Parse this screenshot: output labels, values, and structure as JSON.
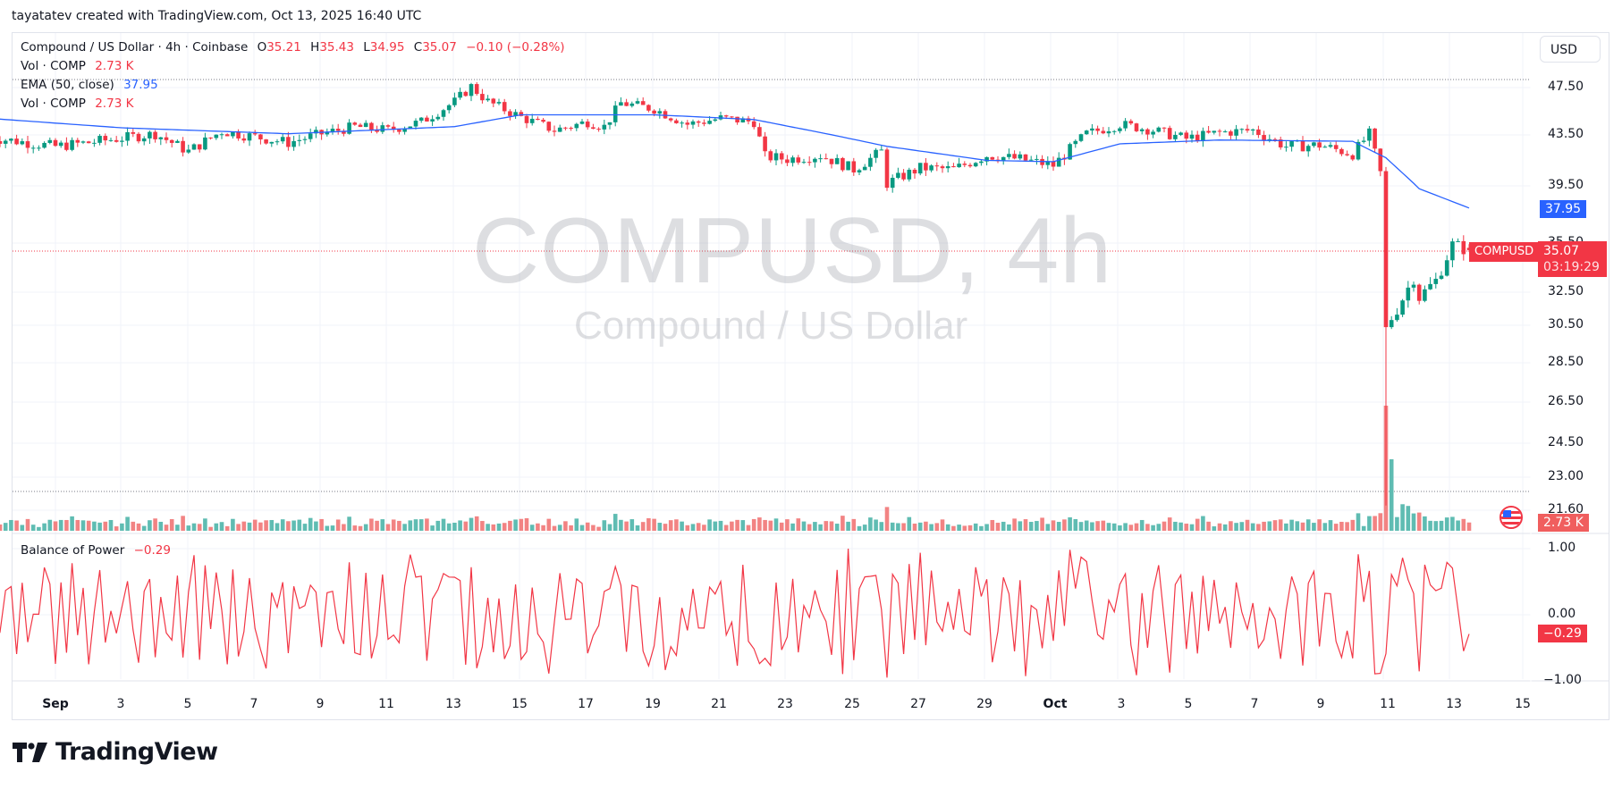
{
  "credit": "tayatatev created with TradingView.com, Oct 13, 2025 16:40 UTC",
  "legend": {
    "symbol_line": "Compound / US Dollar · 4h · Coinbase",
    "o_label": "O",
    "o_value": "35.21",
    "h_label": "H",
    "h_value": "35.43",
    "l_label": "L",
    "l_value": "34.95",
    "c_label": "C",
    "c_value": "35.07",
    "change": "−0.10 (−0.28%)",
    "vol_label": "Vol · COMP",
    "vol_value": "2.73 K",
    "ema_label": "EMA (50, close)",
    "ema_value": "37.95",
    "vol2_label": "Vol · COMP",
    "vol2_value": "2.73 K"
  },
  "currency": "USD",
  "watermark": {
    "title": "COMPUSD, 4h",
    "subtitle": "Compound / US Dollar"
  },
  "price_axis": {
    "ticks": [
      "47.50",
      "43.50",
      "39.50",
      "35.50",
      "32.50",
      "30.50",
      "28.50",
      "26.50",
      "24.50",
      "23.00",
      "21.60"
    ],
    "ema_tag": "37.95",
    "symbol_tag": "COMPUSD",
    "price_tag": "35.07",
    "countdown": "03:19:29",
    "volume_tag": "2.73 K"
  },
  "bop": {
    "label": "Balance of Power",
    "value": "−0.29",
    "ticks": [
      "1.00",
      "0.00",
      "−1.00"
    ],
    "tag": "−0.29"
  },
  "time_axis": [
    {
      "label": "Sep",
      "bold": true
    },
    {
      "label": "3"
    },
    {
      "label": "5"
    },
    {
      "label": "7"
    },
    {
      "label": "9"
    },
    {
      "label": "11"
    },
    {
      "label": "13"
    },
    {
      "label": "15"
    },
    {
      "label": "17"
    },
    {
      "label": "19"
    },
    {
      "label": "21"
    },
    {
      "label": "23"
    },
    {
      "label": "25"
    },
    {
      "label": "27"
    },
    {
      "label": "29"
    },
    {
      "label": "Oct",
      "bold": true
    },
    {
      "label": "3"
    },
    {
      "label": "5"
    },
    {
      "label": "7"
    },
    {
      "label": "9"
    },
    {
      "label": "11"
    },
    {
      "label": "13"
    },
    {
      "label": "15"
    }
  ],
  "brand": "TradingView",
  "colors": {
    "up": "#089981",
    "down": "#f23645",
    "vol_up": "#5fbcb2",
    "vol_down": "#f28383",
    "ema": "#2962ff",
    "bop": "#f23645",
    "grid": "#f0f3fa"
  },
  "chart_data": [
    {
      "type": "candlestick",
      "title": "Compound / US Dollar · 4h · Coinbase (COMPUSD)",
      "xlabel": "",
      "ylabel": "USD",
      "ylim": [
        21.6,
        47.5
      ],
      "x_range": [
        "2025-08-30",
        "2025-10-13"
      ],
      "ohlc_last": {
        "open": 35.21,
        "high": 35.43,
        "low": 34.95,
        "close": 35.07,
        "change": -0.1,
        "change_pct": -0.28
      },
      "close_keypoints": [
        [
          "Aug 30",
          43.3
        ],
        [
          "Sep 1",
          42.6
        ],
        [
          "Sep 2",
          42.9
        ],
        [
          "Sep 4",
          43.6
        ],
        [
          "Sep 5",
          42.2
        ],
        [
          "Sep 6",
          43.8
        ],
        [
          "Sep 8",
          42.9
        ],
        [
          "Sep 9",
          43.6
        ],
        [
          "Sep 10",
          44.2
        ],
        [
          "Sep 11",
          43.9
        ],
        [
          "Sep 12",
          44.6
        ],
        [
          "Sep 13",
          46.3
        ],
        [
          "Sep 13 12h",
          47.6
        ],
        [
          "Sep 14",
          46.3
        ],
        [
          "Sep 15",
          45.0
        ],
        [
          "Sep 16",
          43.9
        ],
        [
          "Sep 17",
          44.6
        ],
        [
          "Sep 17 12h",
          44.2
        ],
        [
          "Sep 18",
          46.2
        ],
        [
          "Sep 19",
          45.7
        ],
        [
          "Sep 20",
          44.4
        ],
        [
          "Sep 21",
          44.9
        ],
        [
          "Sep 22",
          44.6
        ],
        [
          "Sep 22 8h",
          41.8
        ],
        [
          "Sep 23",
          41.6
        ],
        [
          "Sep 24",
          41.9
        ],
        [
          "Sep 25",
          40.8
        ],
        [
          "Sep 25 20h",
          42.2
        ],
        [
          "Sep 26",
          39.7
        ],
        [
          "Sep 27",
          40.9
        ],
        [
          "Sep 28",
          40.8
        ],
        [
          "Sep 29",
          41.9
        ],
        [
          "Sep 30",
          41.6
        ],
        [
          "Oct 1",
          41.1
        ],
        [
          "Oct 2",
          43.6
        ],
        [
          "Oct 3",
          44.4
        ],
        [
          "Oct 4",
          43.9
        ],
        [
          "Oct 5",
          43.2
        ],
        [
          "Oct 6",
          43.7
        ],
        [
          "Oct 7",
          43.9
        ],
        [
          "Oct 8",
          42.6
        ],
        [
          "Oct 9",
          42.7
        ],
        [
          "Oct 10",
          42.0
        ],
        [
          "Oct 10 12h",
          43.6
        ],
        [
          "Oct 10 20h",
          40.5
        ],
        [
          "Oct 11 0h",
          30.4
        ],
        [
          "Oct 11 8h",
          31.5
        ],
        [
          "Oct 11 20h",
          33.4
        ],
        [
          "Oct 12",
          32.2
        ],
        [
          "Oct 12 12h",
          33.2
        ],
        [
          "Oct 13",
          35.4
        ],
        [
          "Oct 13 12h",
          35.07
        ]
      ],
      "extremes": {
        "sep13_high": 47.9,
        "oct11_wick_low": 21.8
      },
      "series": [
        {
          "name": "EMA (50, close)",
          "last": 37.95,
          "keypoints": [
            [
              "Aug 30",
              44.9
            ],
            [
              "Sep 3",
              44.1
            ],
            [
              "Sep 8",
              43.6
            ],
            [
              "Sep 13",
              44.2
            ],
            [
              "Sep 15",
              45.2
            ],
            [
              "Sep 19",
              45.2
            ],
            [
              "Sep 22",
              44.8
            ],
            [
              "Sep 26",
              42.6
            ],
            [
              "Sep 29",
              41.5
            ],
            [
              "Oct 1",
              41.4
            ],
            [
              "Oct 3",
              42.8
            ],
            [
              "Oct 6",
              43.1
            ],
            [
              "Oct 10",
              43.0
            ],
            [
              "Oct 11",
              41.7
            ],
            [
              "Oct 12",
              39.3
            ],
            [
              "Oct 13 12h",
              37.95
            ]
          ]
        },
        {
          "name": "Vol · COMP",
          "last": "2.73 K",
          "note": "volume histogram; spike on Oct 11 (largest), notable bars on Aug 31, Sep 25"
        },
        {
          "name": "Balance of Power",
          "last": -0.29,
          "range": [
            -1,
            1
          ],
          "note": "oscillates between approx -0.9 and 1.0 throughout"
        }
      ]
    }
  ]
}
